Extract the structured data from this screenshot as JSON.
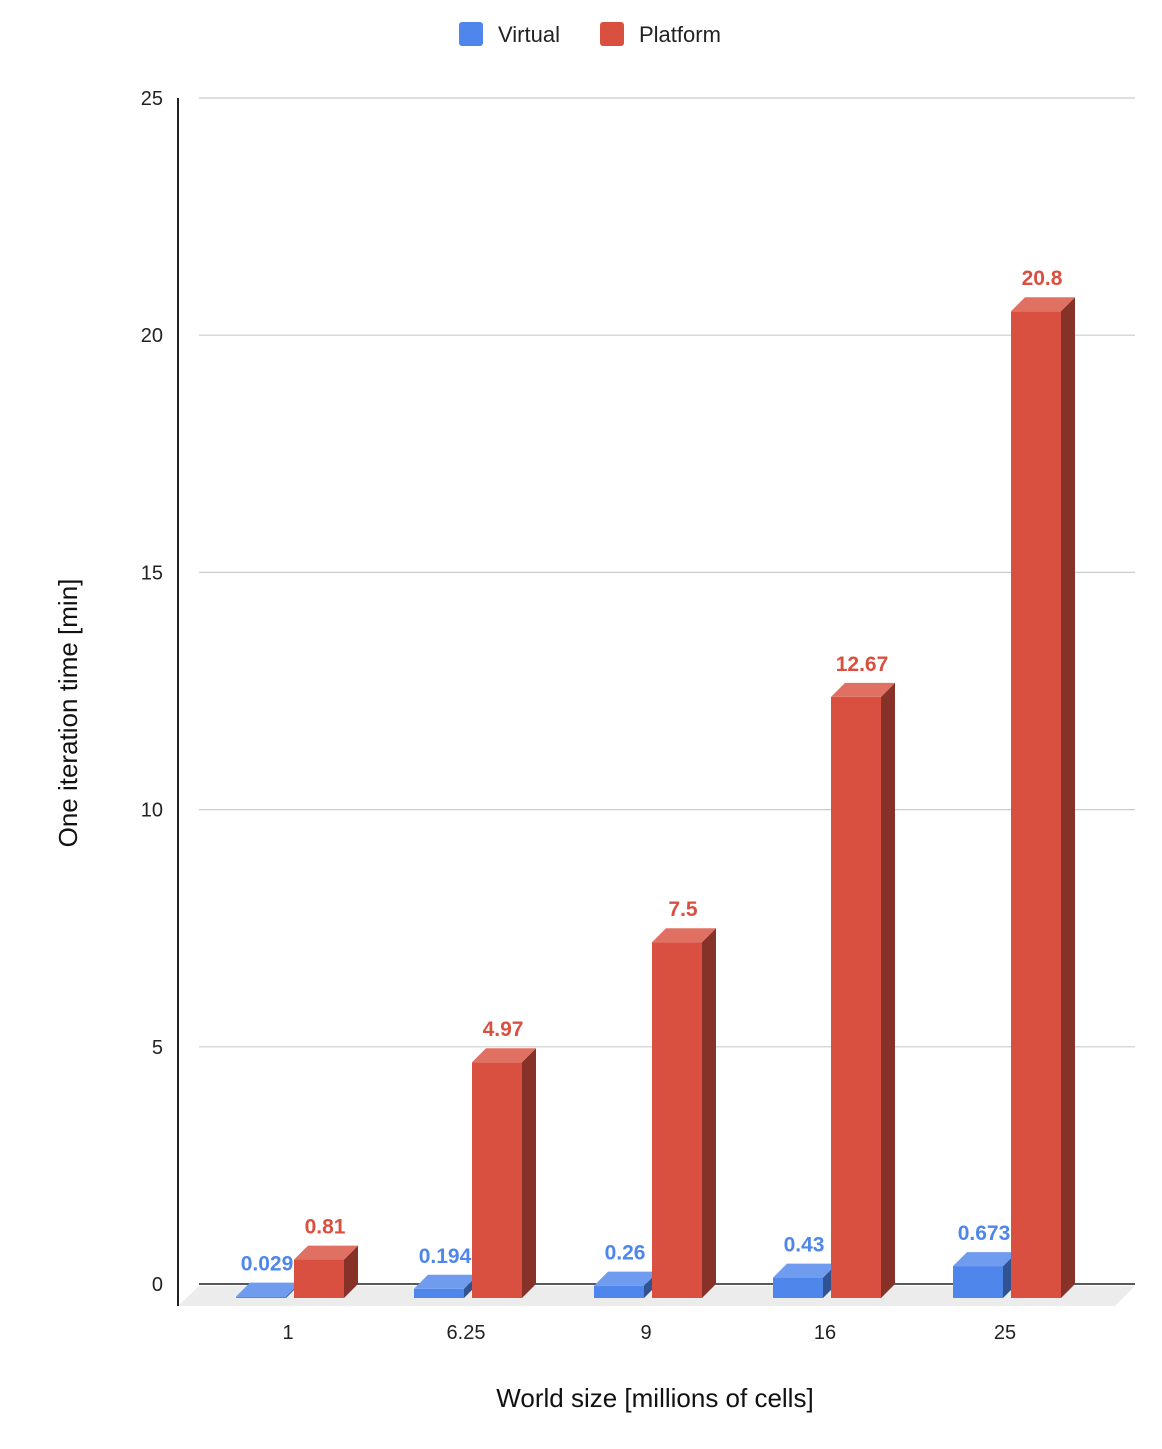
{
  "chart_data": {
    "type": "bar",
    "style": "3d-column",
    "xlabel": "World size [millions of cells]",
    "ylabel": "One iteration time [min]",
    "categories": [
      "1",
      "6.25",
      "9",
      "16",
      "25"
    ],
    "series": [
      {
        "name": "Virtual",
        "values": [
          0.029,
          0.194,
          0.26,
          0.43,
          0.673
        ],
        "labels": [
          "0.029",
          "0.194",
          "0.26",
          "0.43",
          "0.673"
        ],
        "color": "#4f86ec"
      },
      {
        "name": "Platform",
        "values": [
          0.81,
          4.97,
          7.5,
          12.67,
          20.8
        ],
        "labels": [
          "0.81",
          "4.97",
          "7.5",
          "12.67",
          "20.8"
        ],
        "color": "#d95040"
      }
    ],
    "ylim": [
      0,
      25
    ],
    "yticks": [
      "0",
      "5",
      "10",
      "15",
      "20",
      "25"
    ],
    "grid": true,
    "legend_position": "top"
  }
}
